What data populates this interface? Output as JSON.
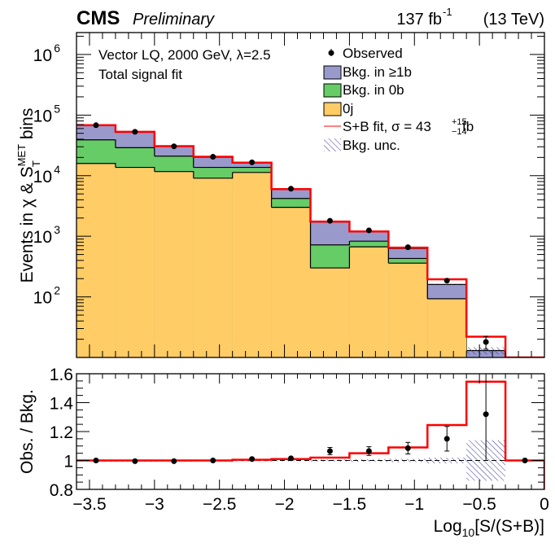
{
  "header": {
    "experiment": "CMS",
    "status": "Preliminary",
    "lumi_value": "137 fb",
    "lumi_exp": "-1",
    "energy": "(13 TeV)"
  },
  "annotations": {
    "line1": "Vector LQ, 2000 GeV, λ=2.5",
    "line2": "Total signal fit"
  },
  "legend": {
    "placement": "top-right",
    "entries": [
      {
        "key": "observed",
        "label": "Observed",
        "style": "marker"
      },
      {
        "key": "bkg_ge1b",
        "label": "Bkg. in ≥1b",
        "style": "fill",
        "color": "#9999cc"
      },
      {
        "key": "bkg_0b",
        "label": "Bkg. in 0b",
        "style": "fill",
        "color": "#66cc66"
      },
      {
        "key": "bkg_0j",
        "label": "0j",
        "style": "fill",
        "color": "#ffcc66"
      },
      {
        "key": "splusb",
        "label_main": "S+B fit, σ = 43",
        "label_sup": "+15",
        "label_sub": "−14",
        "label_unit": " fb",
        "style": "line",
        "color": "#ff0000"
      },
      {
        "key": "bkg_unc",
        "label": "Bkg. unc.",
        "style": "hatch",
        "color": "#333399"
      }
    ]
  },
  "chart_data": [
    {
      "type": "bar",
      "subtype": "stacked-histogram",
      "title": "",
      "xlabel": "Log10[S/(S+B)]",
      "ylabel": "Events in χ & S_T^MET bins",
      "xlim": [
        -3.6,
        0
      ],
      "ylim": [
        10,
        2300000
      ],
      "yscale": "log",
      "ytick_labels": [
        "10^2",
        "10^3",
        "10^4",
        "10^5",
        "10^6"
      ],
      "ytick_values": [
        100,
        1000,
        10000,
        100000,
        1000000
      ],
      "bin_edges": [
        -3.6,
        -3.3,
        -3.0,
        -2.7,
        -2.4,
        -2.1,
        -1.8,
        -1.5,
        -1.2,
        -0.9,
        -0.6,
        -0.3,
        0.0
      ],
      "series": [
        {
          "name": "0j",
          "values": [
            15900,
            13700,
            11700,
            9100,
            11300,
            3000,
            300,
            670,
            360,
            93,
            0,
            0
          ],
          "color": "#ffcc66"
        },
        {
          "name": "Bkg. in 0b",
          "values": [
            23100,
            15300,
            9300,
            4600,
            2400,
            1200,
            420,
            160,
            70,
            0,
            0,
            0
          ],
          "color": "#66cc66"
        },
        {
          "name": "Bkg. in ≥1b",
          "values": [
            29000,
            23000,
            9400,
            6400,
            2600,
            1700,
            1000,
            350,
            200,
            67,
            13,
            0
          ],
          "color": "#9999cc"
        },
        {
          "name": "S+B fit",
          "values": [
            68000,
            53000,
            30700,
            20500,
            16400,
            6000,
            1750,
            1200,
            650,
            195,
            22,
            10
          ],
          "color": "#ff0000"
        }
      ],
      "observed": {
        "x": [
          -3.45,
          -3.15,
          -2.85,
          -2.55,
          -2.25,
          -1.95,
          -1.65,
          -1.35,
          -1.05,
          -0.75,
          -0.45
        ],
        "y": [
          68000,
          53000,
          30500,
          20500,
          16600,
          6100,
          1800,
          1250,
          660,
          185,
          18
        ],
        "yerr": [
          260,
          230,
          175,
          143,
          129,
          78,
          42,
          35,
          26,
          14,
          4.3
        ]
      },
      "bkg_unc_relative": [
        0.002,
        0.002,
        0.002,
        0.003,
        0.004,
        0.005,
        0.008,
        0.01,
        0.012,
        0.02,
        0.14,
        0.0
      ]
    },
    {
      "type": "bar",
      "subtype": "ratio",
      "xlabel": "Log10[S/(S+B)]",
      "ylabel": "Obs. / Bkg.",
      "xlim": [
        -3.6,
        0
      ],
      "ylim": [
        0.8,
        1.6
      ],
      "xtick_labels": [
        "−3.5",
        "−3",
        "−2.5",
        "−2",
        "−1.5",
        "−1",
        "−0.5",
        "0"
      ],
      "xtick_values": [
        -3.5,
        -3,
        -2.5,
        -2,
        -1.5,
        -1,
        -0.5,
        0
      ],
      "ytick_labels": [
        "0.8",
        "1",
        "1.2",
        "1.4",
        "1.6"
      ],
      "ytick_values": [
        0.8,
        1.0,
        1.2,
        1.4,
        1.6
      ],
      "bin_edges": [
        -3.6,
        -3.3,
        -3.0,
        -2.7,
        -2.4,
        -2.1,
        -1.8,
        -1.5,
        -1.2,
        -0.9,
        -0.6,
        -0.3,
        0.0
      ],
      "splusb_ratio": [
        1.0,
        1.0,
        1.0,
        1.0,
        1.005,
        1.01,
        1.02,
        1.05,
        1.09,
        1.245,
        1.545,
        1.0
      ],
      "observed_ratio": {
        "x": [
          -3.45,
          -3.15,
          -2.85,
          -2.55,
          -2.25,
          -1.95,
          -1.65,
          -1.35,
          -1.05,
          -0.75,
          -0.45,
          -0.15
        ],
        "y": [
          1.0,
          0.995,
          0.995,
          1.0,
          1.01,
          1.015,
          1.065,
          1.065,
          1.085,
          1.15,
          1.32,
          1.0
        ],
        "yerr": [
          0.004,
          0.004,
          0.006,
          0.007,
          0.008,
          0.013,
          0.025,
          0.03,
          0.04,
          0.085,
          0.32,
          0.0
        ]
      },
      "bkg_unc_band": [
        0.002,
        0.002,
        0.002,
        0.003,
        0.004,
        0.005,
        0.008,
        0.01,
        0.012,
        0.02,
        0.14,
        0.0
      ],
      "reference_line": 1.0
    }
  ]
}
